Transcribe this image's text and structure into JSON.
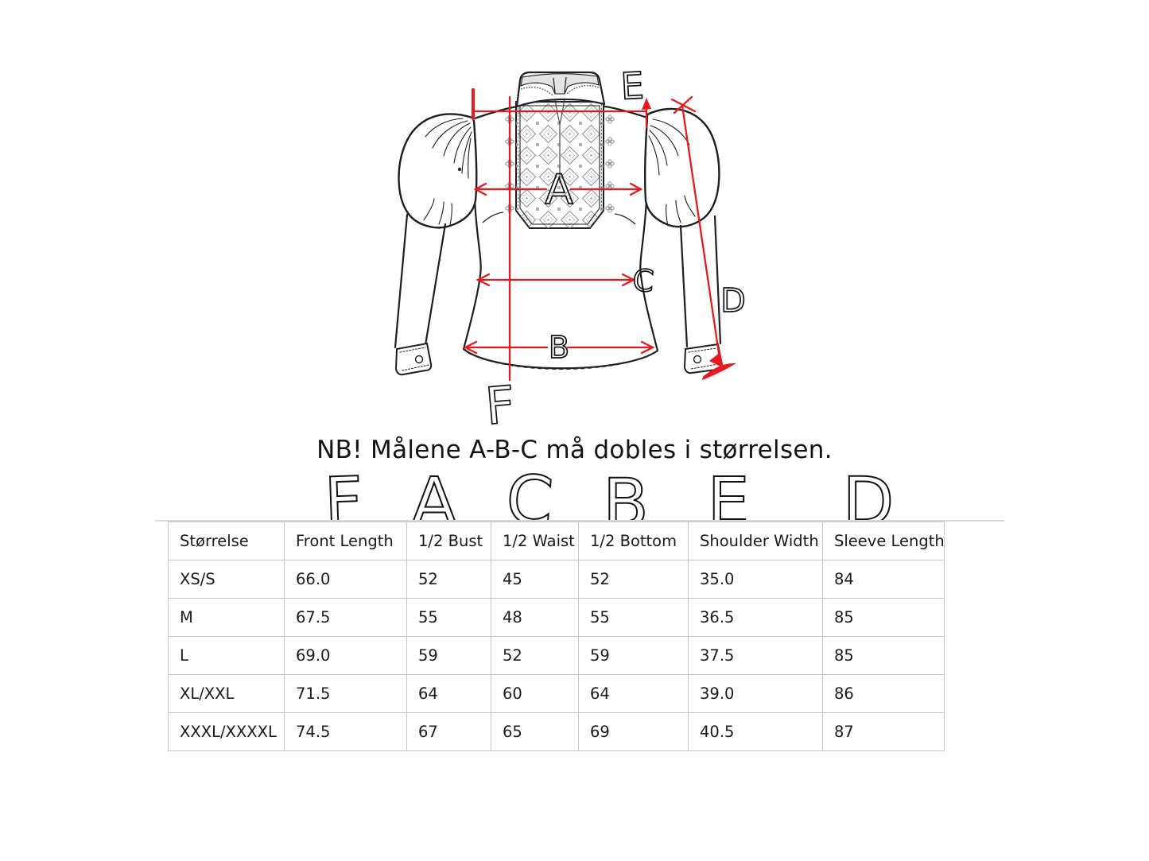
{
  "note": "NB! Målene A-B-C må dobles i størrelsen.",
  "column_letters": [
    "F",
    "A",
    "C",
    "B",
    "E",
    "D"
  ],
  "diagram": {
    "letters": {
      "a": "A",
      "b": "B",
      "c": "C",
      "d": "D",
      "e": "E",
      "f": "F"
    },
    "accent_color": "#e8191e",
    "line_color": "#1a1a1a"
  },
  "size_table": {
    "columns": [
      "Størrelse",
      "Front Length",
      "1/2 Bust",
      "1/2 Waist",
      "1/2 Bottom",
      "Shoulder Width",
      "Sleeve Length"
    ],
    "rows": [
      [
        "XS/S",
        "66.0",
        "52",
        "45",
        "52",
        "35.0",
        "84"
      ],
      [
        "M",
        "67.5",
        "55",
        "48",
        "55",
        "36.5",
        "85"
      ],
      [
        "L",
        "69.0",
        "59",
        "52",
        "59",
        "37.5",
        "85"
      ],
      [
        "XL/XXL",
        "71.5",
        "64",
        "60",
        "64",
        "39.0",
        "86"
      ],
      [
        "XXXL/XXXXL",
        "74.5",
        "67",
        "65",
        "69",
        "40.5",
        "87"
      ]
    ]
  }
}
